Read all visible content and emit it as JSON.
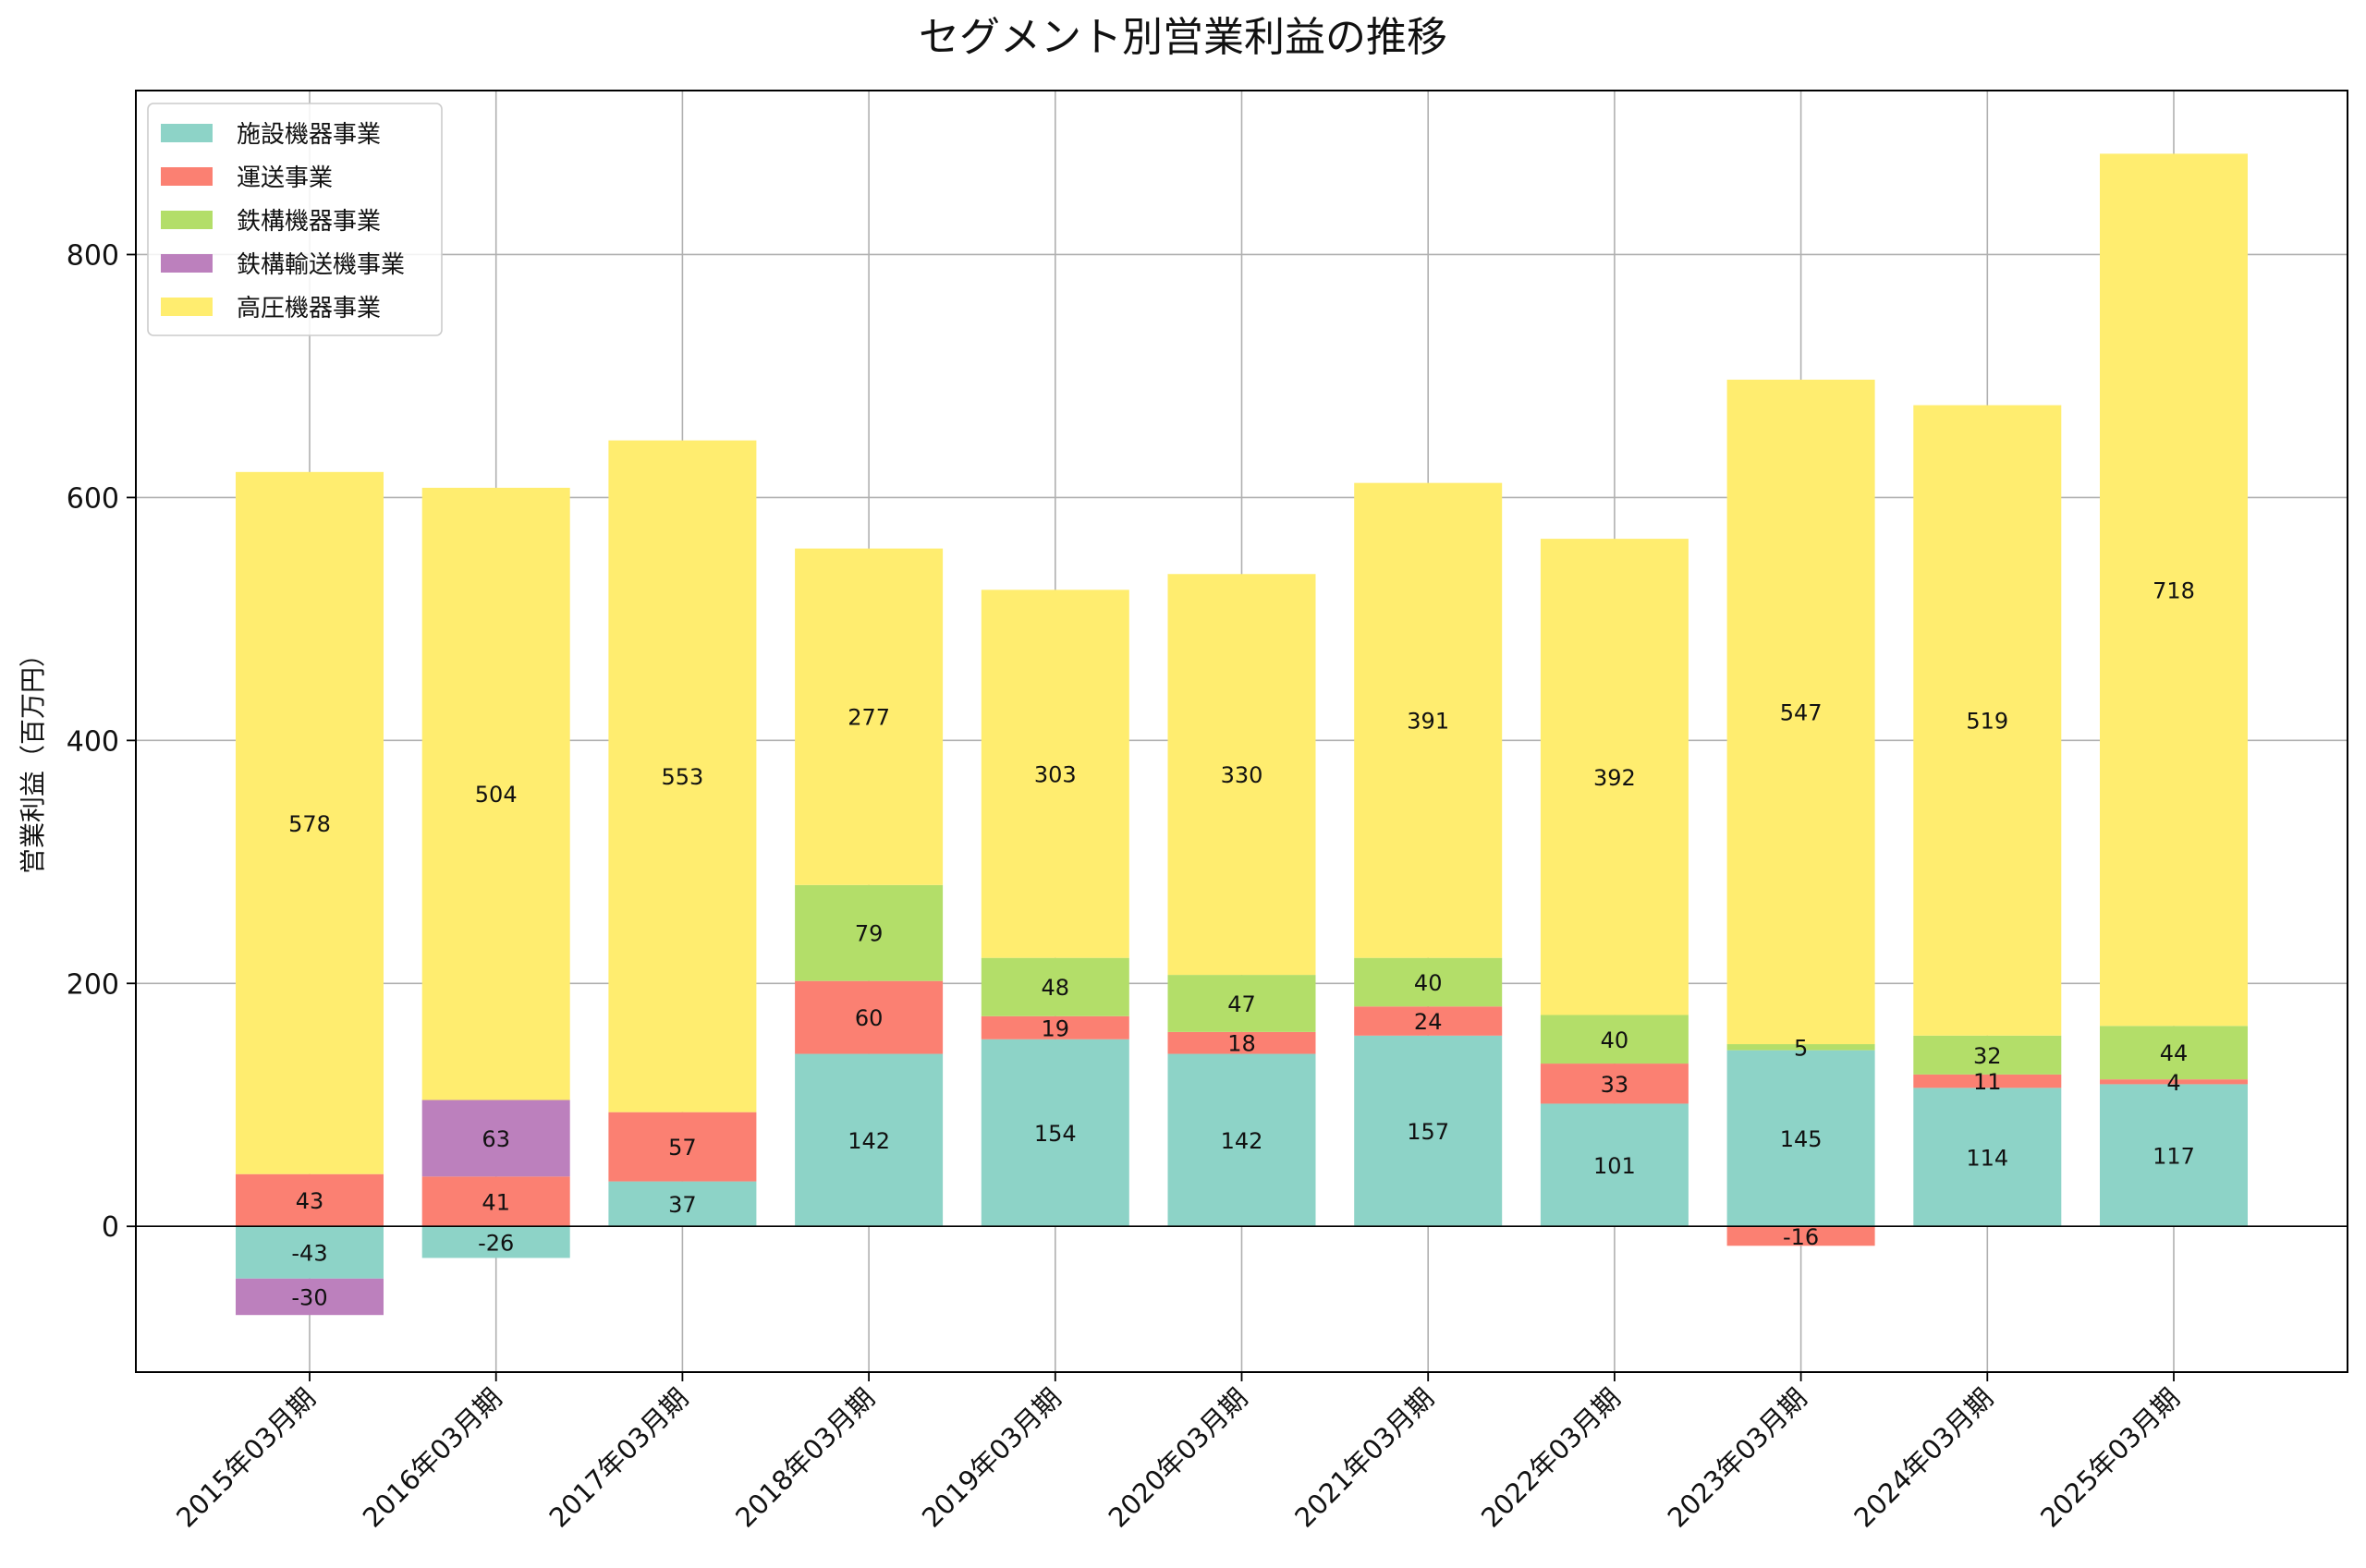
{
  "chart_data": {
    "type": "bar",
    "stacked": true,
    "title": "セグメント別営業利益の推移",
    "xlabel": "",
    "ylabel": "営業利益（百万円）",
    "ylim": [
      -120,
      935
    ],
    "yticks": [
      0,
      200,
      400,
      600,
      800
    ],
    "grid": true,
    "legend_position": "top-left",
    "categories": [
      "2015年03月期",
      "2016年03月期",
      "2017年03月期",
      "2018年03月期",
      "2019年03月期",
      "2020年03月期",
      "2021年03月期",
      "2022年03月期",
      "2023年03月期",
      "2024年03月期",
      "2025年03月期"
    ],
    "series": [
      {
        "name": "施設機器事業",
        "color": "#8dd3c7",
        "values": [
          -43,
          -26,
          37,
          142,
          154,
          142,
          157,
          101,
          145,
          114,
          117
        ]
      },
      {
        "name": "運送事業",
        "color": "#fb8072",
        "values": [
          43,
          41,
          57,
          60,
          19,
          18,
          24,
          33,
          -16,
          11,
          4
        ]
      },
      {
        "name": "鉄構機器事業",
        "color": "#b3de69",
        "values": [
          0,
          0,
          0,
          79,
          48,
          47,
          40,
          40,
          5,
          32,
          44
        ]
      },
      {
        "name": "鉄構輸送機事業",
        "color": "#bc80bd",
        "values": [
          -30,
          63,
          0,
          0,
          0,
          0,
          0,
          0,
          0,
          0,
          0
        ]
      },
      {
        "name": "高圧機器事業",
        "color": "#ffed6f",
        "values": [
          578,
          504,
          553,
          277,
          303,
          330,
          391,
          392,
          547,
          519,
          718
        ]
      }
    ]
  }
}
